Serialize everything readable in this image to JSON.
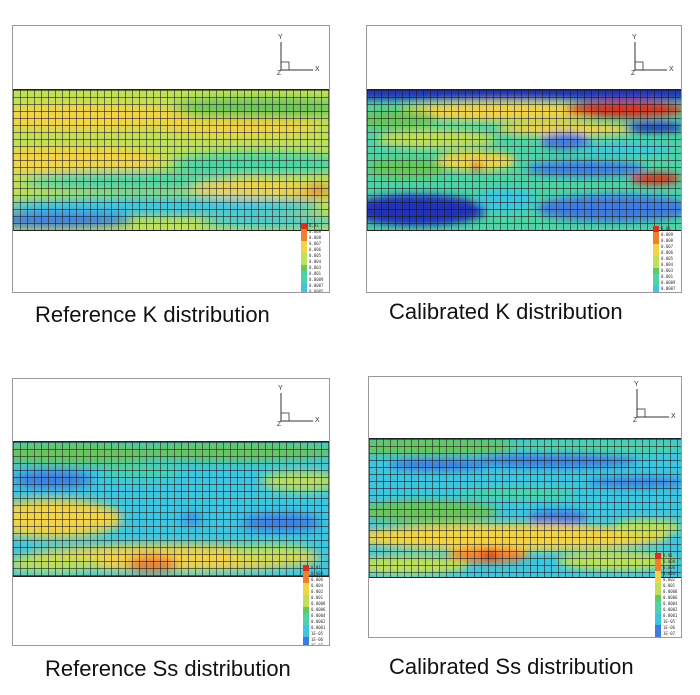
{
  "palette": [
    "#d7301f",
    "#f08030",
    "#f3d34a",
    "#bfe05a",
    "#69c65a",
    "#4fd3a6",
    "#3ec6e0",
    "#3f7be0",
    "#2233b8"
  ],
  "axes": {
    "y_label": "Y",
    "x_label": "X",
    "z_label": "Z"
  },
  "panels": [
    {
      "caption": "Reference K distribution",
      "legend": [
        "0.01",
        "0.009",
        "0.008",
        "0.007",
        "0.006",
        "0.005",
        "0.004",
        "0.003",
        "0.001",
        "0.0009",
        "0.0007",
        "0.0005",
        "0.0003",
        "0.0002",
        "0.0001"
      ]
    },
    {
      "caption": "Calibrated K distribution",
      "legend": [
        "0.01",
        "0.009",
        "0.008",
        "0.007",
        "0.006",
        "0.005",
        "0.004",
        "0.003",
        "0.001",
        "0.0009",
        "0.0007",
        "0.0005",
        "0.0003",
        "0.0002",
        "0.0001"
      ]
    },
    {
      "caption": "Reference Ss distribution",
      "legend": [
        "0.01",
        "0.008",
        "0.006",
        "0.004",
        "0.002",
        "0.001",
        "0.0008",
        "0.0006",
        "0.0004",
        "0.0002",
        "0.0001",
        "1E-05",
        "1E-06",
        "1E-07",
        "1E-08"
      ]
    },
    {
      "caption": "Calibrated Ss distribution",
      "legend": [
        "0.01",
        "0.008",
        "0.006",
        "0.004",
        "0.002",
        "0.001",
        "0.0008",
        "0.0006",
        "0.0004",
        "0.0002",
        "0.0001",
        "1E-05",
        "1E-06",
        "1E-07",
        "1E-08"
      ]
    }
  ]
}
